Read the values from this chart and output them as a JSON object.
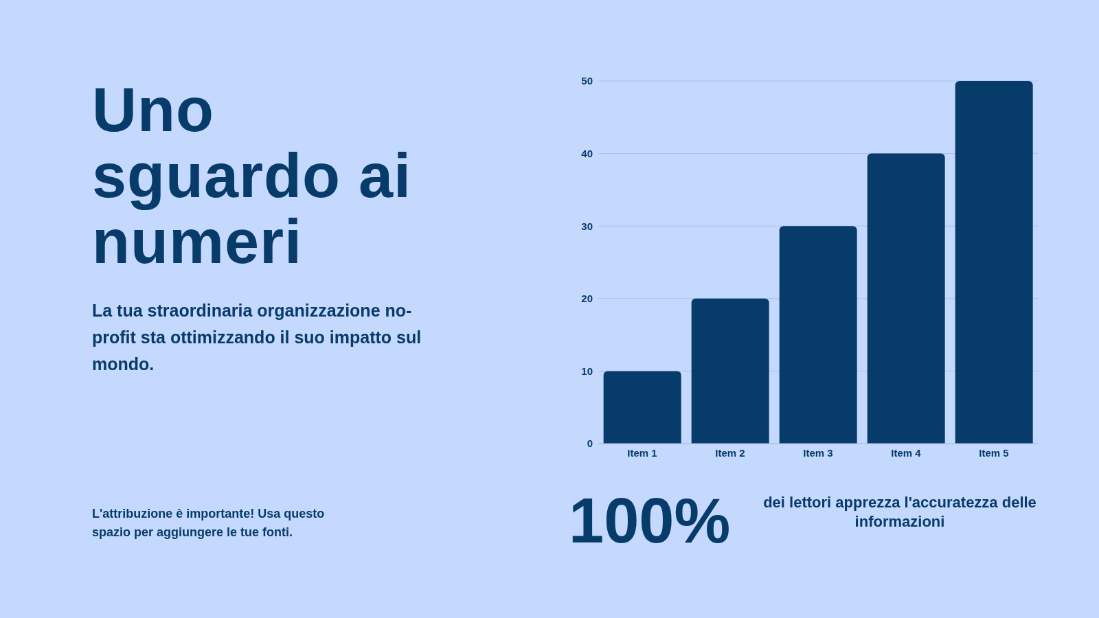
{
  "chart_data": {
    "type": "bar",
    "title": "Uno sguardo ai numeri",
    "subtitle": "La tua straordinaria organizzazione no-profit sta ottimizzando il suo impatto sul mondo.",
    "categories": [
      "Item 1",
      "Item 2",
      "Item 3",
      "Item 4",
      "Item 5"
    ],
    "values": [
      10,
      20,
      30,
      40,
      50
    ],
    "color": "#073b69",
    "ylim": [
      0,
      50
    ],
    "yticks": [
      0,
      10,
      20,
      30,
      40,
      50
    ],
    "grid": "y",
    "annotations": [
      "L'attribuzione è importante! Usa questo spazio per aggiungere le tue fonti.",
      "100%",
      "dei lettori apprezza l'accuratezza delle informazioni"
    ]
  }
}
